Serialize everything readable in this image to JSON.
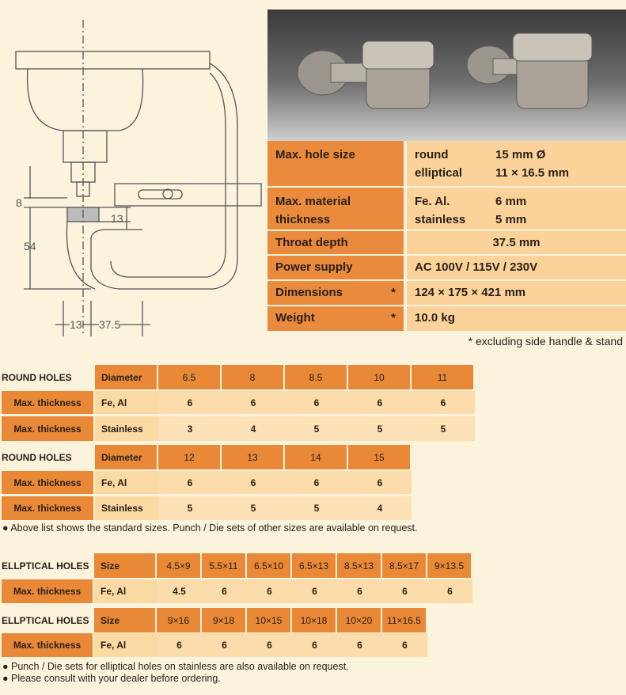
{
  "diagram": {
    "dim_8": "8",
    "dim_54": "54",
    "dim_13_top": "13",
    "dim_13_bottom": "13",
    "dim_37_5": "37.5"
  },
  "colors": {
    "header_orange": "#e98836",
    "cell_light": "#fbdcaa",
    "background": "#fbf3dc"
  },
  "specs": [
    {
      "label": "Max. hole size",
      "star": "",
      "lines": [
        [
          "round",
          "15 mm Ø"
        ],
        [
          "elliptical",
          "11 × 16.5 mm"
        ]
      ]
    },
    {
      "label": "Max. material thickness",
      "star": "",
      "lines": [
        [
          "Fe. Al.",
          "6 mm"
        ],
        [
          "stainless",
          "5 mm"
        ]
      ]
    },
    {
      "label": "Throat depth",
      "star": "",
      "value": "37.5 mm"
    },
    {
      "label": "Power supply",
      "star": "",
      "value": "AC 100V / 115V / 230V"
    },
    {
      "label": "Dimensions",
      "star": "*",
      "value": "124 × 175 × 421 mm"
    },
    {
      "label": "Weight",
      "star": "*",
      "value": "10.0 kg"
    }
  ],
  "spec_note": "* excluding side handle & stand",
  "tables": [
    {
      "title": "ROUND HOLES",
      "header": "Diameter",
      "cols": [
        "6.5",
        "8",
        "8.5",
        "10",
        "11"
      ],
      "rows": [
        {
          "label": "Max. thickness",
          "material": "Fe, Al",
          "values": [
            "6",
            "6",
            "6",
            "6",
            "6"
          ]
        },
        {
          "label": "Max. thickness",
          "material": "Stainless",
          "values": [
            "3",
            "4",
            "5",
            "5",
            "5"
          ]
        }
      ]
    },
    {
      "title": "ROUND HOLES",
      "header": "Diameter",
      "cols": [
        "12",
        "13",
        "14",
        "15"
      ],
      "rows": [
        {
          "label": "Max. thickness",
          "material": "Fe, Al",
          "values": [
            "6",
            "6",
            "6",
            "6"
          ]
        },
        {
          "label": "Max. thickness",
          "material": "Stainless",
          "values": [
            "5",
            "5",
            "5",
            "4"
          ]
        }
      ]
    },
    {
      "title": "ELLPTICAL HOLES",
      "header": "Size",
      "cols": [
        "4.5×9",
        "5.5×11",
        "6.5×10",
        "6.5×13",
        "8.5×13",
        "8.5×17",
        "9×13.5"
      ],
      "rows": [
        {
          "label": "Max. thickness",
          "material": "Fe, Al",
          "values": [
            "4.5",
            "6",
            "6",
            "6",
            "6",
            "6",
            "6"
          ]
        }
      ]
    },
    {
      "title": "ELLPTICAL HOLES",
      "header": "Size",
      "cols": [
        "9×16",
        "9×18",
        "10×15",
        "10×18",
        "10×20",
        "11×16.5"
      ],
      "rows": [
        {
          "label": "Max. thickness",
          "material": "Fe, Al",
          "values": [
            "6",
            "6",
            "6",
            "6",
            "6",
            "6"
          ]
        }
      ]
    }
  ],
  "notes": {
    "round": "● Above list shows the standard sizes. Punch / Die sets of other sizes are available on request.",
    "elliptical_1": "● Punch / Die sets for elliptical holes on stainless are also available on request.",
    "elliptical_2": "● Please consult with your dealer before ordering."
  }
}
